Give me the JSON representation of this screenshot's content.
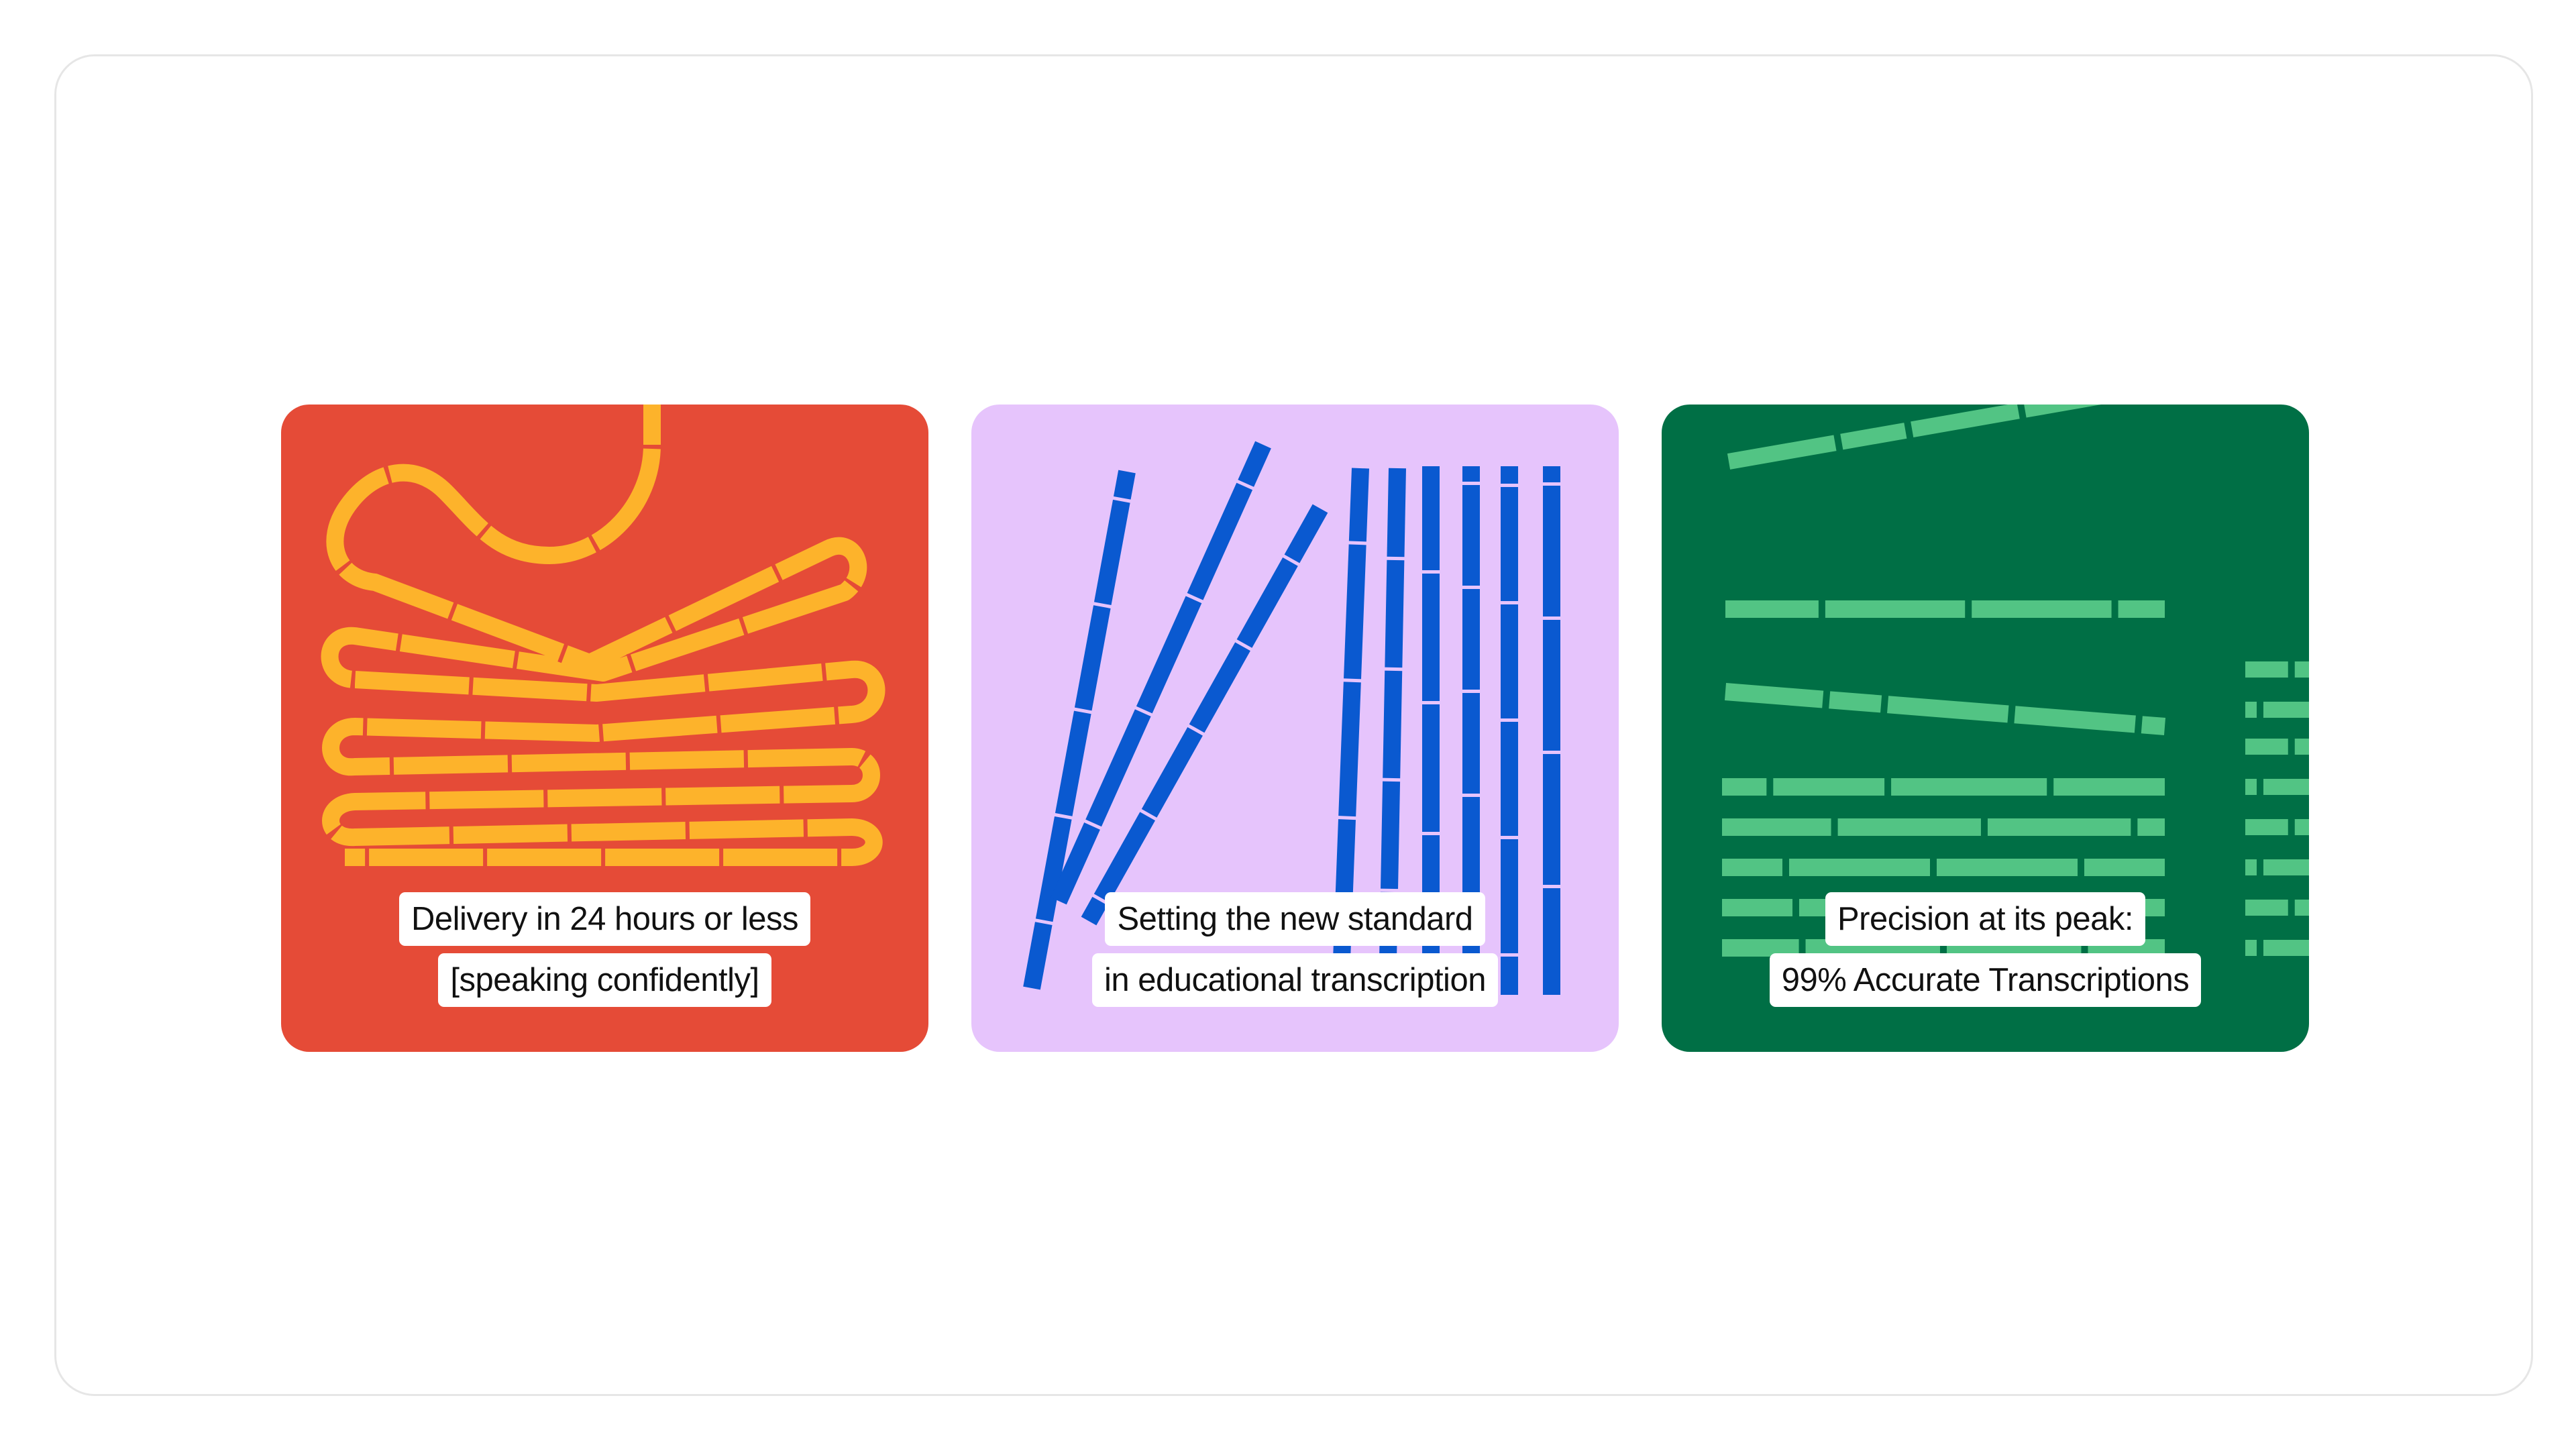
{
  "colors": {
    "background": "#ffffff",
    "frame_border": "#e6e6e6",
    "card1_bg": "#e54b37",
    "card1_art": "#fdb32b",
    "card2_bg": "#e6c4fc",
    "card2_art": "#0a59d0",
    "card3_bg": "#006f45",
    "card3_art": "#52c484",
    "caption_bg": "#ffffff",
    "caption_text": "#111111"
  },
  "cards": [
    {
      "illustration": "folded-ribbon-illustration",
      "caption": [
        "Delivery in 24 hours or less",
        "[speaking confidently]"
      ]
    },
    {
      "illustration": "leaning-bars-illustration",
      "caption": [
        "Setting the new standard",
        "in educational transcription"
      ]
    },
    {
      "illustration": "stacked-dashes-illustration",
      "caption": [
        "Precision at its peak:",
        "99% Accurate Transcriptions"
      ]
    }
  ]
}
